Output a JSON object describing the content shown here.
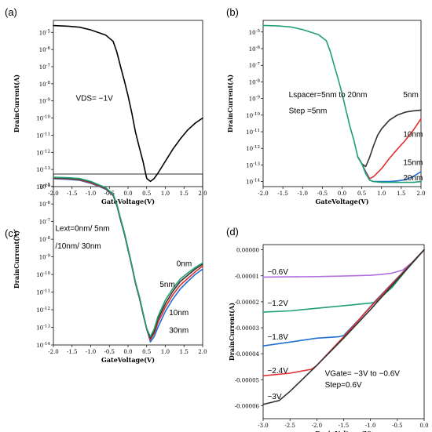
{
  "chart_data": [
    {
      "panel": "(a)",
      "type": "line",
      "yscale": "log",
      "xlabel": "GateVoltage(V)",
      "ylabel": "DrainCurrent(A)",
      "xlim": [
        -2.0,
        2.0
      ],
      "ylim": [
        1e-14,
        5e-05
      ],
      "xticks": [
        "-2.0",
        "-1.5",
        "-1.0",
        "-0.5",
        "0.0",
        "0.5",
        "1.0",
        "1.5",
        "2.0"
      ],
      "yticks": [
        "10-5",
        "10-6",
        "10-7",
        "10-8",
        "10-9",
        "10-10",
        "10-11",
        "10-12",
        "10-13",
        "10-14"
      ],
      "annotations": [
        {
          "text": "VDS= −1V",
          "x": -1.4,
          "y": 1e-09
        }
      ],
      "series": [
        {
          "name": "",
          "color": "#000000",
          "x": [
            -2.0,
            -1.6,
            -1.3,
            -1.0,
            -0.6,
            -0.4,
            -0.3,
            -0.2,
            -0.1,
            0.0,
            0.1,
            0.2,
            0.3,
            0.4,
            0.5,
            0.6,
            0.7,
            0.8,
            1.0,
            1.2,
            1.4,
            1.6,
            1.8,
            2.0
          ],
          "y": [
            2.5e-05,
            2.3e-05,
            2e-05,
            1.4e-05,
            7e-06,
            3e-06,
            7e-07,
            1e-07,
            1.5e-08,
            2e-09,
            2e-10,
            1.5e-11,
            2e-12,
            3e-13,
            3e-14,
            2e-14,
            3e-14,
            6e-14,
            3e-13,
            1.5e-12,
            6e-12,
            2e-11,
            5e-11,
            1e-10
          ]
        }
      ]
    },
    {
      "panel": "(b)",
      "type": "line",
      "yscale": "log",
      "xlabel": "GateVoltage(V)",
      "ylabel": "DrainCurrent(A)",
      "xlim": [
        -2.0,
        2.0
      ],
      "ylim": [
        5e-15,
        5e-05
      ],
      "xticks": [
        "-2.0",
        "-1.5",
        "-1.0",
        "-0.5",
        "0.0",
        "0.5",
        "1.0",
        "1.5",
        "2.0"
      ],
      "yticks": [
        "10-5",
        "10-6",
        "10-7",
        "10-8",
        "10-9",
        "10-10",
        "10-11",
        "10-12",
        "10-13",
        "10-14"
      ],
      "annotations": [
        {
          "text": "Lspacer=5nm to 20nm",
          "x": -1.35,
          "y": 1.2e-09
        },
        {
          "text": "Step =5nm",
          "x": -1.35,
          "y": 1.3e-10
        },
        {
          "text": "5nm",
          "x": 1.55,
          "y": 1.2e-09
        },
        {
          "text": "10nm",
          "x": 1.55,
          "y": 5e-12
        },
        {
          "text": "15nm",
          "x": 1.55,
          "y": 1e-13
        },
        {
          "text": "20nm",
          "x": 1.55,
          "y": 1.2e-14
        }
      ],
      "series": [
        {
          "name": "5nm",
          "color": "#333333",
          "x": [
            0.4,
            0.5,
            0.6,
            0.7,
            0.8,
            0.9,
            1.0,
            1.2,
            1.4,
            1.6,
            1.8,
            2.0
          ],
          "y": [
            3e-13,
            1.2e-13,
            8e-14,
            3e-13,
            1.5e-12,
            6e-12,
            1.5e-11,
            5e-11,
            1e-10,
            1.5e-10,
            1.8e-10,
            2e-10
          ]
        },
        {
          "name": "10nm",
          "color": "#e03030",
          "x": [
            0.4,
            0.5,
            0.6,
            0.7,
            0.8,
            1.0,
            1.2,
            1.4,
            1.6,
            1.8,
            2.0
          ],
          "y": [
            3e-13,
            1.2e-13,
            4e-14,
            1.5e-14,
            2e-14,
            6e-14,
            2.5e-13,
            9e-13,
            3e-12,
            1.2e-11,
            6e-11
          ]
        },
        {
          "name": "15nm",
          "color": "#1f6fd0",
          "x": [
            0.4,
            0.5,
            0.6,
            0.7,
            0.8,
            1.0,
            1.2,
            1.4,
            1.6,
            1.8,
            2.0
          ],
          "y": [
            3e-13,
            1.2e-13,
            3.5e-14,
            1.2e-14,
            1e-14,
            1e-14,
            1e-14,
            1.1e-14,
            1.3e-14,
            2e-14,
            4e-14
          ]
        },
        {
          "name": "20nm",
          "color": "#20a070",
          "x": [
            -2.0,
            -1.6,
            -1.3,
            -1.0,
            -0.6,
            -0.4,
            -0.3,
            -0.2,
            -0.1,
            0.0,
            0.1,
            0.2,
            0.3,
            0.4,
            0.5,
            0.6,
            0.7,
            0.8,
            1.0,
            1.2,
            1.4,
            1.6,
            1.8,
            2.0
          ],
          "y": [
            2.5e-05,
            2.3e-05,
            2e-05,
            1.4e-05,
            7e-06,
            3e-06,
            7e-07,
            1e-07,
            1.5e-08,
            2e-09,
            2e-10,
            2e-11,
            3e-12,
            3e-13,
            1.2e-13,
            3e-14,
            1.2e-14,
            1e-14,
            9e-15,
            9e-15,
            9e-15,
            9e-15,
            9e-15,
            1e-14
          ]
        }
      ]
    },
    {
      "panel": "(c)",
      "type": "line",
      "yscale": "log",
      "xlabel": "GateVoltage(V)",
      "ylabel": "DrainCurrent(A)",
      "xlim": [
        -2.0,
        2.0
      ],
      "ylim": [
        1e-14,
        5e-05
      ],
      "xticks": [
        "-2.0",
        "-1.5",
        "-1.0",
        "-0.5",
        "0.0",
        "0.5",
        "1.0",
        "1.5",
        "2.0"
      ],
      "yticks": [
        "10-5",
        "10-6",
        "10-7",
        "10-8",
        "10-9",
        "10-10",
        "10-11",
        "10-12",
        "10-13",
        "10-14"
      ],
      "annotations": [
        {
          "text": "Lext=0nm/ 5nm",
          "x": -1.95,
          "y": 3e-08
        },
        {
          "text": "/10nm/ 30nm",
          "x": -1.95,
          "y": 3e-09
        },
        {
          "text": "0nm",
          "x": 1.3,
          "y": 3e-10
        },
        {
          "text": "5nm",
          "x": 0.85,
          "y": 2e-11
        },
        {
          "text": "10nm",
          "x": 1.1,
          "y": 5e-13
        },
        {
          "text": "30nm",
          "x": 1.1,
          "y": 5e-14
        }
      ],
      "series": [
        {
          "name": "30nm",
          "color": "#1f6fd0",
          "x": [
            -2.0,
            -1.6,
            -1.3,
            -1.0,
            -0.6,
            -0.4,
            -0.3,
            -0.2,
            -0.1,
            0.0,
            0.1,
            0.2,
            0.3,
            0.4,
            0.5,
            0.6,
            0.7,
            0.8,
            1.0,
            1.2,
            1.4,
            1.6,
            1.8,
            2.0
          ],
          "y": [
            2.7e-05,
            2.5e-05,
            2.2e-05,
            1.5e-05,
            7e-06,
            3e-06,
            8e-07,
            1.2e-07,
            2e-08,
            2.5e-09,
            3e-10,
            3e-11,
            5e-12,
            6e-13,
            8e-14,
            1.5e-14,
            3e-14,
            1e-13,
            8e-13,
            4e-12,
            1.5e-11,
            4e-11,
            1e-10,
            2e-10
          ]
        },
        {
          "name": "10nm",
          "color": "#e03030",
          "x": [
            -2.0,
            -1.6,
            -1.3,
            -1.0,
            -0.6,
            -0.4,
            -0.3,
            -0.2,
            -0.1,
            0.0,
            0.1,
            0.2,
            0.3,
            0.4,
            0.5,
            0.6,
            0.7,
            0.8,
            1.0,
            1.2,
            1.4,
            1.6,
            1.8,
            2.0
          ],
          "y": [
            2.9e-05,
            2.7e-05,
            2.4e-05,
            1.6e-05,
            7.5e-06,
            3.2e-06,
            8.5e-07,
            1.3e-07,
            2.2e-08,
            2.7e-09,
            3.2e-10,
            3.2e-11,
            5e-12,
            6e-13,
            8e-14,
            2e-14,
            4.5e-14,
            1.8e-13,
            1.4e-12,
            7e-12,
            2.5e-11,
            6e-11,
            1.4e-10,
            3e-10
          ]
        },
        {
          "name": "5nm",
          "color": "#333333",
          "x": [
            -2.0,
            -1.6,
            -1.3,
            -1.0,
            -0.6,
            -0.4,
            -0.3,
            -0.2,
            -0.1,
            0.0,
            0.1,
            0.2,
            0.3,
            0.4,
            0.5,
            0.6,
            0.7,
            0.8,
            1.0,
            1.2,
            1.4,
            1.6,
            1.8,
            2.0
          ],
          "y": [
            3.1e-05,
            2.9e-05,
            2.6e-05,
            1.8e-05,
            8e-06,
            3.4e-06,
            9e-07,
            1.4e-07,
            2.3e-08,
            2.8e-09,
            3.3e-10,
            3.4e-11,
            5.5e-12,
            6.5e-13,
            8e-14,
            2.5e-14,
            6e-14,
            2.8e-13,
            2.2e-12,
            1.1e-11,
            4e-11,
            9e-11,
            2e-10,
            3.8e-10
          ]
        },
        {
          "name": "0nm",
          "color": "#20a070",
          "x": [
            -2.0,
            -1.6,
            -1.3,
            -1.0,
            -0.6,
            -0.4,
            -0.3,
            -0.2,
            -0.1,
            0.0,
            0.1,
            0.2,
            0.3,
            0.4,
            0.5,
            0.6,
            0.7,
            0.8,
            1.0,
            1.2,
            1.4,
            1.6,
            1.8,
            2.0
          ],
          "y": [
            3.3e-05,
            3.1e-05,
            2.8e-05,
            1.9e-05,
            8.5e-06,
            3.6e-06,
            9.5e-07,
            1.5e-07,
            2.4e-08,
            3e-09,
            3.5e-10,
            3.6e-11,
            6e-12,
            7e-13,
            8.5e-14,
            3e-14,
            8e-14,
            4e-13,
            3.5e-12,
            1.6e-11,
            5.5e-11,
            1.2e-10,
            2.5e-10,
            4.5e-10
          ]
        }
      ]
    },
    {
      "panel": "(d)",
      "type": "line",
      "yscale": "linear",
      "xlabel": "DrainVoltage(V)",
      "ylabel": "DrainCurrent(A)",
      "xlim": [
        -3.0,
        0.0
      ],
      "ylim": [
        -6.5e-05,
        2e-06
      ],
      "xticks": [
        "-3.0",
        "-2.5",
        "-2.0",
        "-1.5",
        "-1.0",
        "-0.5",
        "0.0"
      ],
      "ytick_values": [
        0,
        -1e-05,
        -2e-05,
        -3e-05,
        -4e-05,
        -5e-05,
        -6e-05
      ],
      "yticks": [
        "0.00000",
        "-0.00001",
        "-0.00002",
        "-0.00003",
        "-0.00004",
        "-0.00005",
        "-0.00006"
      ],
      "annotations": [
        {
          "text": "−0.6V",
          "x": -2.92,
          "y": -9.5e-06
        },
        {
          "text": "−1.2V",
          "x": -2.92,
          "y": -2.15e-05
        },
        {
          "text": "−1.8V",
          "x": -2.92,
          "y": -3.45e-05
        },
        {
          "text": "−2.4V",
          "x": -2.92,
          "y": -4.75e-05
        },
        {
          "text": "VGate= −3V to −0.6V",
          "x": -1.85,
          "y": -4.85e-05
        },
        {
          "text": "Step=0.6V",
          "x": -1.85,
          "y": -5.3e-05
        },
        {
          "text": "−3V",
          "x": -2.92,
          "y": -5.75e-05
        }
      ],
      "series": [
        {
          "name": "−0.6V",
          "color": "#b070e0",
          "x": [
            -3.0,
            -2.5,
            -2.0,
            -1.5,
            -1.0,
            -0.8,
            -0.6,
            -0.4,
            -0.2,
            0.0
          ],
          "y": [
            -1.05e-05,
            -1.04e-05,
            -1.03e-05,
            -1.01e-05,
            -9.8e-06,
            -9.5e-06,
            -9e-06,
            -7.8e-06,
            -4.5e-06,
            0.0
          ]
        },
        {
          "name": "−1.2V",
          "color": "#20a070",
          "x": [
            -3.0,
            -2.5,
            -2.0,
            -1.5,
            -1.0,
            -0.9,
            -0.6,
            -0.3,
            0.0
          ],
          "y": [
            -2.4e-05,
            -2.35e-05,
            -2.25e-05,
            -2.15e-05,
            -2.05e-05,
            -2e-05,
            -1.45e-05,
            -7e-06,
            0.0
          ]
        },
        {
          "name": "−1.8V",
          "color": "#1f6fd0",
          "x": [
            -3.0,
            -2.5,
            -2.0,
            -1.6,
            -1.5,
            -1.2,
            -0.9,
            -0.6,
            -0.3,
            0.0
          ],
          "y": [
            -3.7e-05,
            -3.55e-05,
            -3.4e-05,
            -3.35e-05,
            -3.3e-05,
            -2.65e-05,
            -1.95e-05,
            -1.3e-05,
            -6.5e-06,
            0.0
          ]
        },
        {
          "name": "−2.4V",
          "color": "#e03030",
          "x": [
            -3.0,
            -2.5,
            -2.1,
            -2.0,
            -1.5,
            -1.0,
            -0.5,
            0.0
          ],
          "y": [
            -4.85e-05,
            -4.75e-05,
            -4.6e-05,
            -4.45e-05,
            -3.35e-05,
            -2.2e-05,
            -1.1e-05,
            0.0
          ]
        },
        {
          "name": "−3V",
          "color": "#333333",
          "x": [
            -3.0,
            -2.8,
            -2.7,
            -2.5,
            -2.0,
            -1.5,
            -1.0,
            -0.5,
            0.0
          ],
          "y": [
            -5.95e-05,
            -5.85e-05,
            -5.8e-05,
            -5.45e-05,
            -4.45e-05,
            -3.4e-05,
            -2.3e-05,
            -1.15e-05,
            0.0
          ]
        }
      ]
    }
  ]
}
